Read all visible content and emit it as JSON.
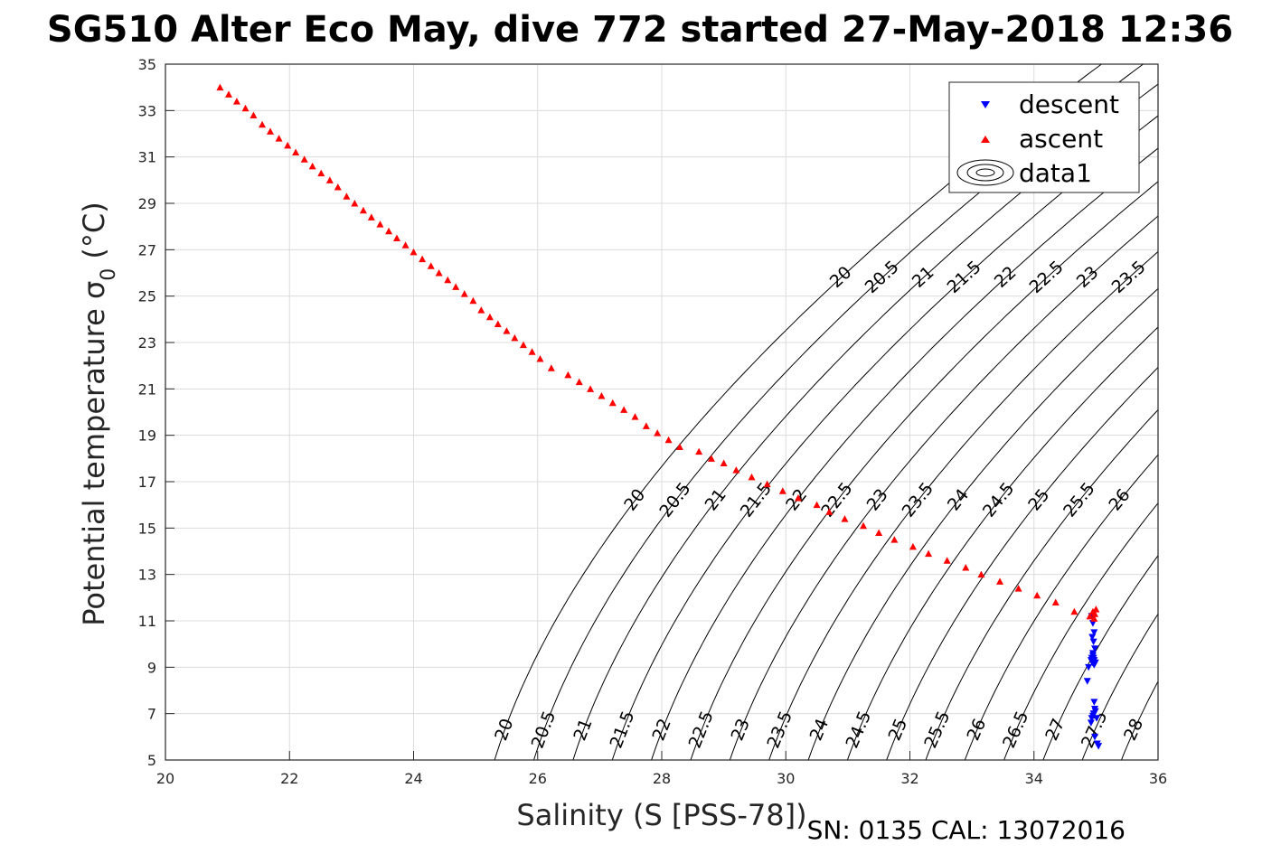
{
  "chart_data": {
    "type": "scatter",
    "title": "SG510 Alter Eco May, dive 772 started 27-May-2018 12:36",
    "xlabel": "Salinity (S [PSS-78])",
    "ylabel_main": "Potential temperature σ",
    "ylabel_sub": "0",
    "ylabel_unit": "(°C)",
    "footer": "SN: 0135  CAL: 13072016",
    "xlim": [
      20,
      36
    ],
    "ylim": [
      5,
      35
    ],
    "xticks": [
      "20",
      "22",
      "24",
      "26",
      "28",
      "30",
      "32",
      "34",
      "36"
    ],
    "yticks": [
      "5",
      "7",
      "9",
      "11",
      "13",
      "15",
      "17",
      "19",
      "21",
      "23",
      "25",
      "27",
      "29",
      "31",
      "33",
      "35"
    ],
    "grid": true,
    "legend_position": "top-right",
    "legend": [
      {
        "label": "descent",
        "marker": "triangle-down",
        "color": "#0000ff"
      },
      {
        "label": "ascent",
        "marker": "triangle-up",
        "color": "#ff0000"
      },
      {
        "label": "data1",
        "marker": "contour",
        "color": "#000000"
      }
    ],
    "contour_levels": [
      "20",
      "20.5",
      "21",
      "21.5",
      "22",
      "22.5",
      "23",
      "23.5",
      "24",
      "24.5",
      "25",
      "25.5",
      "26",
      "26.5",
      "27",
      "27.5",
      "28"
    ],
    "series": [
      {
        "name": "descent",
        "color": "#0000ff",
        "marker": "triangle-down",
        "x": [
          34.93,
          34.95,
          34.97,
          34.94,
          34.96,
          34.98,
          34.95,
          34.93,
          34.97,
          34.99,
          34.96,
          34.95,
          34.94,
          34.97,
          34.92,
          34.88,
          34.86,
          34.97,
          34.98,
          34.96,
          34.93,
          34.92,
          34.95,
          34.99,
          35.01,
          34.98,
          35.02,
          35.04
        ],
        "y": [
          11.2,
          10.9,
          10.5,
          10.3,
          10.1,
          9.8,
          9.6,
          9.4,
          9.3,
          9.2,
          9.4,
          9.5,
          9.2,
          9.1,
          9.3,
          9.0,
          8.4,
          7.5,
          7.2,
          7.0,
          6.8,
          6.6,
          6.9,
          7.1,
          6.8,
          6.0,
          5.7,
          5.6
        ]
      },
      {
        "name": "ascent",
        "color": "#ff0000",
        "marker": "triangle-up",
        "x": [
          20.88,
          21.02,
          21.15,
          21.29,
          21.42,
          21.56,
          21.69,
          21.83,
          21.97,
          22.1,
          22.24,
          22.37,
          22.51,
          22.65,
          22.78,
          22.92,
          23.05,
          23.19,
          23.32,
          23.46,
          23.6,
          23.73,
          23.87,
          24,
          24.14,
          24.28,
          24.41,
          24.55,
          24.68,
          24.82,
          24.96,
          25.09,
          25.23,
          25.36,
          25.5,
          25.63,
          25.77,
          25.91,
          26.04,
          26.22,
          26.49,
          26.67,
          26.85,
          27.03,
          27.21,
          27.39,
          27.57,
          27.75,
          27.93,
          28.11,
          28.29,
          28.6,
          28.8,
          29,
          29.2,
          29.45,
          29.7,
          29.95,
          30.2,
          30.5,
          30.7,
          30.95,
          31.25,
          31.5,
          31.75,
          32.05,
          32.3,
          32.6,
          32.9,
          33.15,
          33.45,
          33.75,
          34.05,
          34.35,
          34.65,
          34.9,
          34.95,
          34.97,
          34.98,
          35.0
        ],
        "y": [
          34.0,
          33.7,
          33.4,
          33.1,
          32.8,
          32.4,
          32.1,
          31.8,
          31.5,
          31.2,
          30.9,
          30.6,
          30.3,
          30.0,
          29.7,
          29.3,
          29.0,
          28.7,
          28.4,
          28.1,
          27.8,
          27.5,
          27.2,
          26.9,
          26.6,
          26.3,
          26.0,
          25.7,
          25.4,
          25.1,
          24.8,
          24.4,
          24.1,
          23.8,
          23.5,
          23.2,
          22.9,
          22.6,
          22.3,
          21.9,
          21.6,
          21.3,
          21.0,
          20.7,
          20.4,
          20.1,
          19.8,
          19.4,
          19.1,
          18.8,
          18.5,
          18.3,
          18.0,
          17.8,
          17.5,
          17.2,
          16.9,
          16.6,
          16.3,
          16.0,
          15.7,
          15.4,
          15.1,
          14.8,
          14.5,
          14.2,
          13.9,
          13.6,
          13.3,
          13.0,
          12.7,
          12.4,
          12.1,
          11.8,
          11.4,
          11.2,
          11.4,
          11.1,
          11.3,
          11.5
        ]
      }
    ]
  }
}
